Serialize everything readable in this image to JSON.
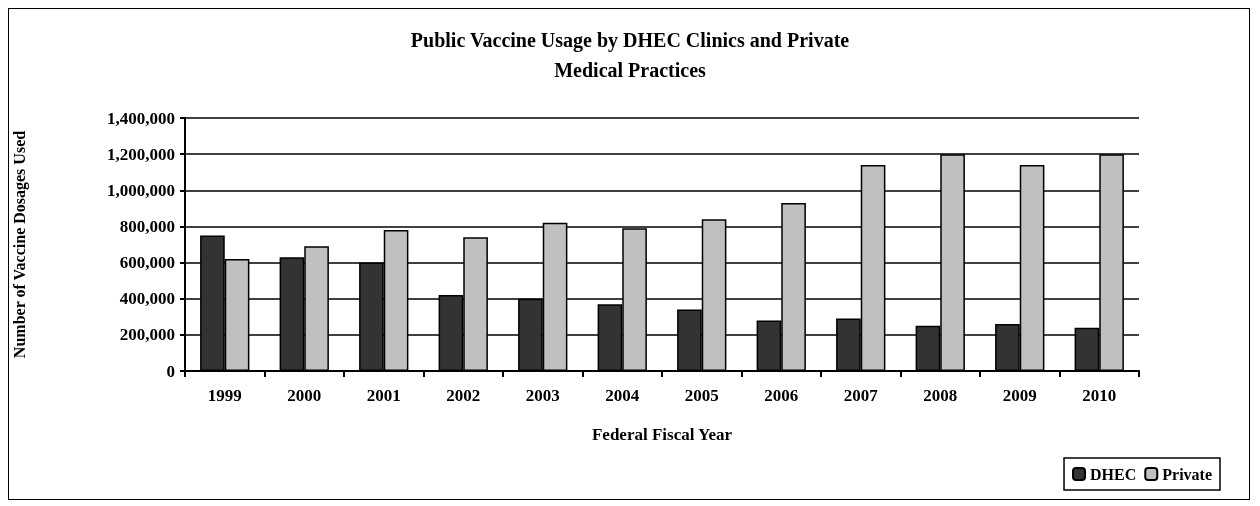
{
  "chart_data": {
    "type": "bar",
    "title": "Public Vaccine Usage by DHEC Clinics and Private\nMedical Practices",
    "xlabel": "Federal Fiscal Year",
    "ylabel": "Number of Vaccine Dosages Used",
    "categories": [
      "1999",
      "2000",
      "2001",
      "2002",
      "2003",
      "2004",
      "2005",
      "2006",
      "2007",
      "2008",
      "2009",
      "2010"
    ],
    "series": [
      {
        "name": "DHEC",
        "color": "#333333",
        "values": [
          750000,
          630000,
          600000,
          420000,
          400000,
          370000,
          340000,
          280000,
          290000,
          250000,
          260000,
          240000
        ]
      },
      {
        "name": "Private",
        "color": "#c0c0c0",
        "values": [
          620000,
          690000,
          780000,
          740000,
          820000,
          790000,
          840000,
          930000,
          1140000,
          1200000,
          1140000,
          1200000
        ]
      }
    ],
    "ylim": [
      0,
      1400000
    ],
    "yticks": [
      0,
      {
        "value": 200000,
        "label": "200,000"
      },
      {
        "value": 400000,
        "label": "400,000"
      },
      {
        "value": 600000,
        "label": "600,000"
      },
      {
        "value": 800000,
        "label": "800,000"
      },
      {
        "value": 1000000,
        "label": "1,000,000"
      },
      {
        "value": 1200000,
        "label": "1,200,000"
      },
      {
        "value": 1400000,
        "label": "1,400,000"
      }
    ],
    "grid": "y",
    "legend": "bottom right"
  }
}
